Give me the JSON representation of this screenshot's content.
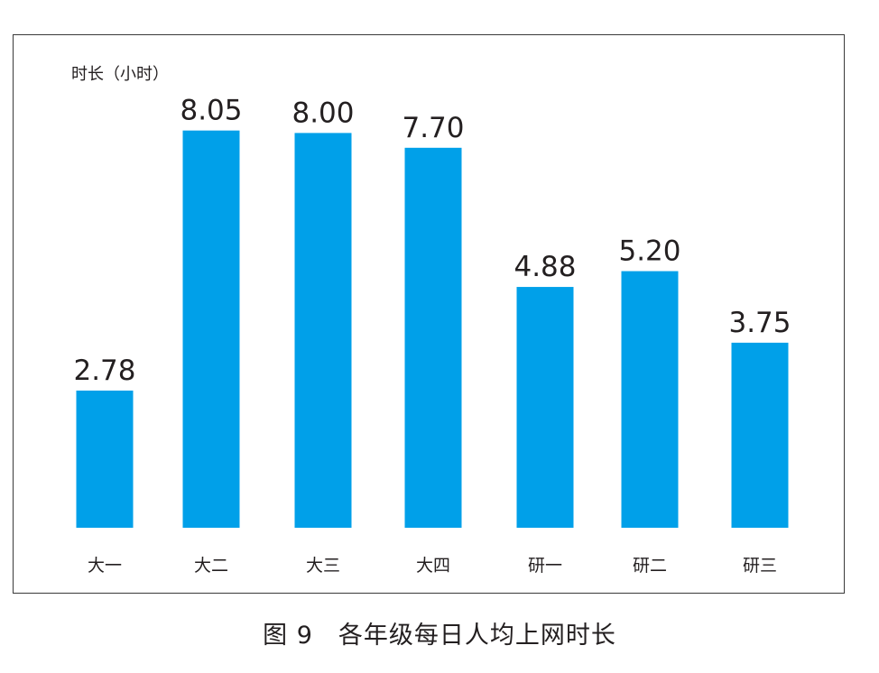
{
  "chart_data": {
    "type": "bar",
    "ylabel": "时长（小时）",
    "categories": [
      "大一",
      "大二",
      "大三",
      "大四",
      "研一",
      "研二",
      "研三"
    ],
    "values": [
      2.78,
      8.05,
      8.0,
      7.7,
      4.88,
      5.2,
      3.75
    ],
    "value_labels": [
      "2.78",
      "8.05",
      "8.00",
      "7.70",
      "4.88",
      "5.20",
      "3.75"
    ],
    "bar_color": "#00a0e9",
    "grid": false,
    "legend": "none"
  },
  "caption": "图 9　各年级每日人均上网时长"
}
